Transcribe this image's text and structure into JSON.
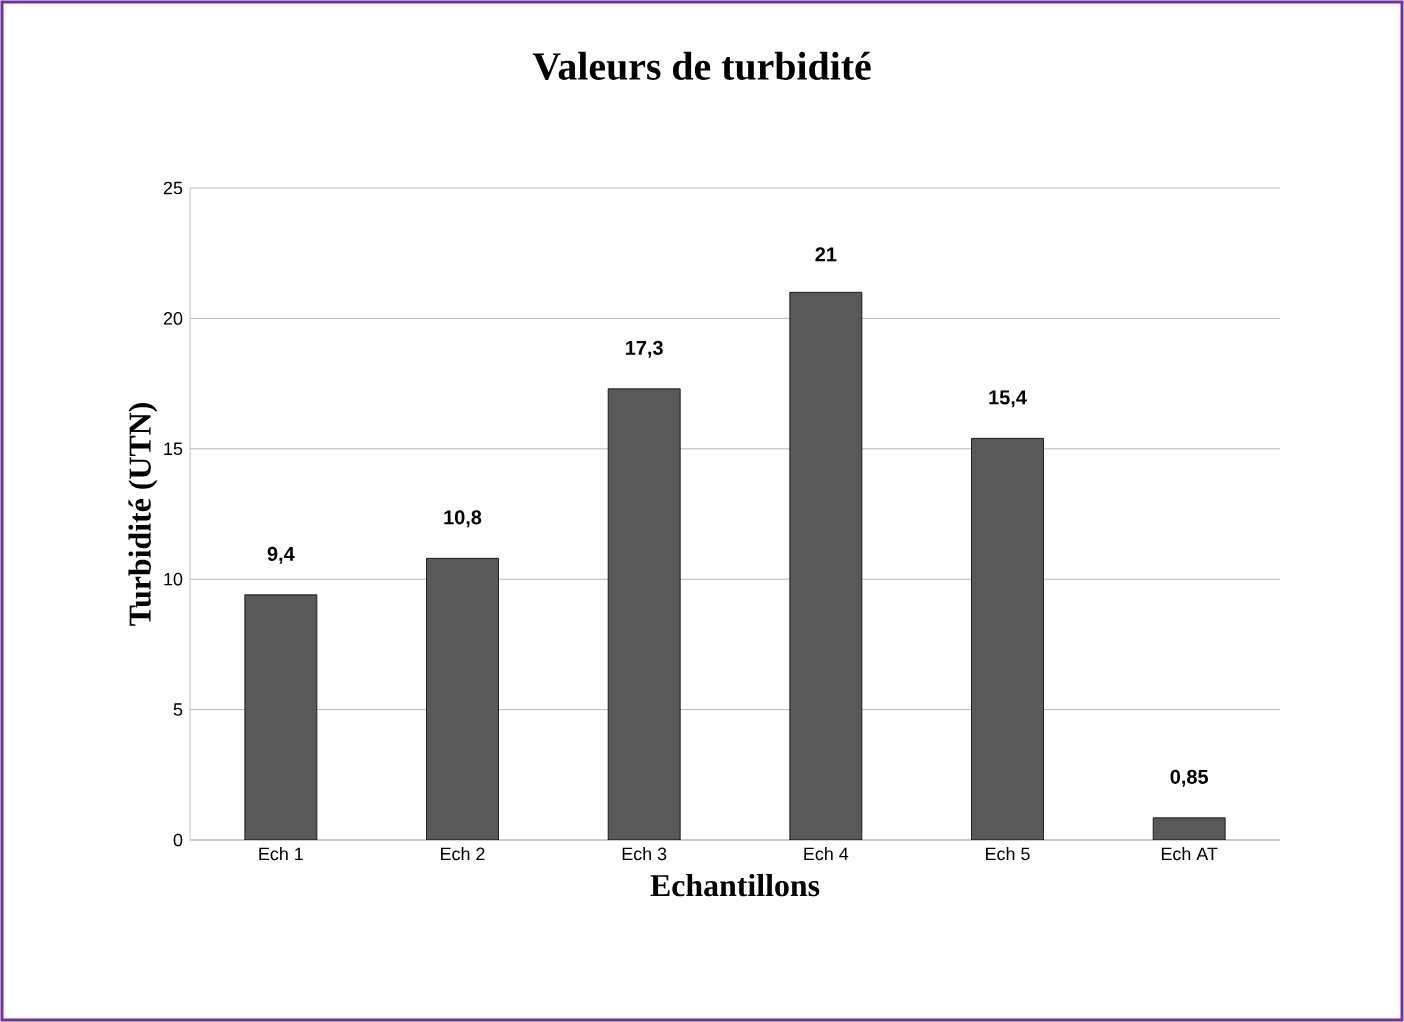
{
  "chart_data": {
    "type": "bar",
    "title": "Valeurs de turbidité",
    "xlabel": "Echantillons",
    "ylabel": "Turbidité (UTN)",
    "categories": [
      "Ech 1",
      "Ech 2",
      "Ech 3",
      "Ech 4",
      "Ech 5",
      "Ech AT"
    ],
    "values": [
      9.4,
      10.8,
      17.3,
      21,
      15.4,
      0.85
    ],
    "value_labels": [
      "9,4",
      "10,8",
      "17,3",
      "21",
      "15,4",
      "0,85"
    ],
    "color": "#595959",
    "ylim": [
      0,
      25
    ],
    "yticks": [
      0,
      5,
      10,
      15,
      20,
      25
    ],
    "grid": "y"
  }
}
